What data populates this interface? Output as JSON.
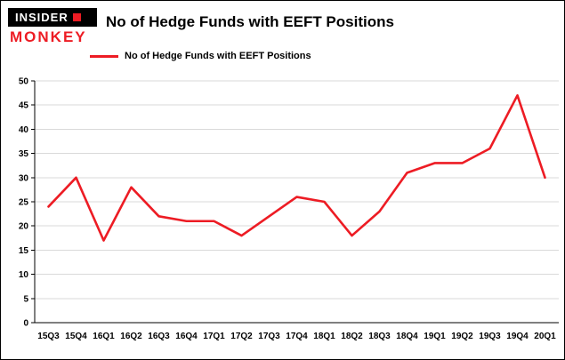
{
  "logo": {
    "line1": "INSIDER",
    "line2": "MONKEY"
  },
  "header": {
    "title": "No of Hedge Funds with EEFT Positions"
  },
  "legend": {
    "label": "No of Hedge Funds with EEFT Positions"
  },
  "colors": {
    "line": "#ed1c24",
    "grid": "#d9d9d9",
    "axis": "#000000",
    "logo_red": "#ed1c24",
    "background": "#ffffff"
  },
  "chart_data": {
    "type": "line",
    "title": "No of Hedge Funds with EEFT Positions",
    "legend": [
      "No of Hedge Funds with EEFT Positions"
    ],
    "categories": [
      "15Q3",
      "15Q4",
      "16Q1",
      "16Q2",
      "16Q3",
      "16Q4",
      "17Q1",
      "17Q2",
      "17Q3",
      "17Q4",
      "18Q1",
      "18Q2",
      "18Q3",
      "18Q4",
      "19Q1",
      "19Q2",
      "19Q3",
      "19Q4",
      "20Q1"
    ],
    "values": [
      24,
      30,
      17,
      28,
      22,
      21,
      21,
      18,
      22,
      26,
      25,
      18,
      23,
      31,
      33,
      33,
      36,
      47,
      30
    ],
    "ylim": [
      0,
      50
    ],
    "ytick_interval": 5,
    "xlabel": "",
    "ylabel": "",
    "grid": true,
    "legend_position": "top-left",
    "line_color": "#ed1c24"
  }
}
